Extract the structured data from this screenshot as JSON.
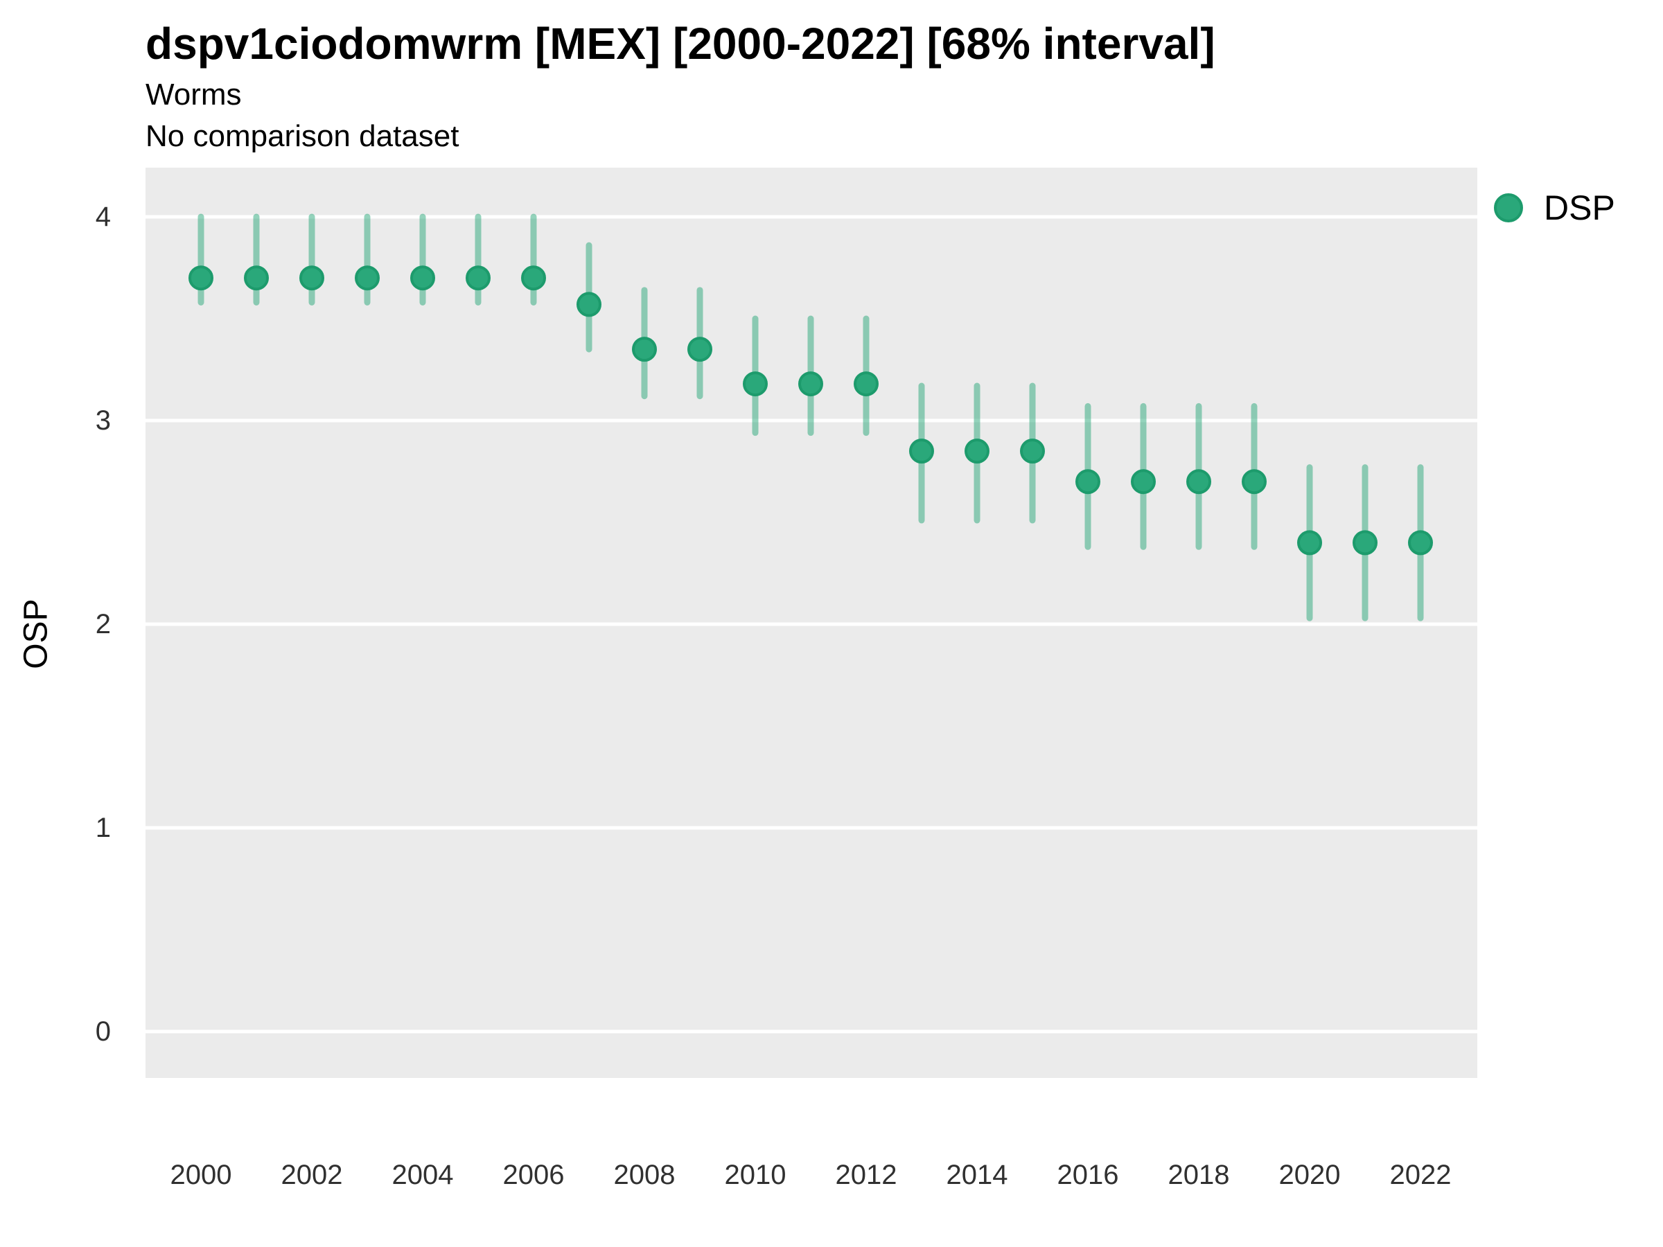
{
  "header": {
    "title": "dspv1ciodomwrm [MEX] [2000-2022] [68% interval]",
    "subtitle": "Worms",
    "note": "No comparison dataset"
  },
  "axes": {
    "ylabel": "OSP"
  },
  "legend": {
    "items": [
      {
        "label": "DSP",
        "marker": "circle"
      }
    ]
  },
  "colors": {
    "point": "#2aa87a",
    "point_border": "#1d9b6c",
    "interval": "rgba(42,168,122,0.5)",
    "panel_bg": "#ebebeb",
    "gridline": "#ffffff",
    "tick_text": "#303030",
    "text": "#000000"
  },
  "chart_data": {
    "type": "scatter",
    "variant": "pointrange",
    "title": "dspv1ciodomwrm [MEX] [2000-2022] [68% interval]",
    "subtitle": "Worms",
    "note": "No comparison dataset",
    "interval_level": "68%",
    "xlabel": "",
    "ylabel": "OSP",
    "legend_position": "right",
    "grid": "major horizontal, white on gray panel",
    "ylim": [
      -0.23,
      4.24
    ],
    "yticks": [
      0,
      1,
      2,
      3,
      4
    ],
    "xticks": [
      2000,
      2002,
      2004,
      2006,
      2008,
      2010,
      2012,
      2014,
      2016,
      2018,
      2020,
      2022
    ],
    "x": [
      2000,
      2001,
      2002,
      2003,
      2004,
      2005,
      2006,
      2007,
      2008,
      2009,
      2010,
      2011,
      2012,
      2013,
      2014,
      2015,
      2016,
      2017,
      2018,
      2019,
      2020,
      2021,
      2022
    ],
    "series": [
      {
        "name": "DSP",
        "values": [
          3.7,
          3.7,
          3.7,
          3.7,
          3.7,
          3.7,
          3.7,
          3.57,
          3.35,
          3.35,
          3.18,
          3.18,
          3.18,
          2.85,
          2.85,
          2.85,
          2.7,
          2.7,
          2.7,
          2.7,
          2.4,
          2.4,
          2.4
        ],
        "lower": [
          3.58,
          3.58,
          3.58,
          3.58,
          3.58,
          3.58,
          3.58,
          3.35,
          3.12,
          3.12,
          2.94,
          2.94,
          2.94,
          2.51,
          2.51,
          2.51,
          2.38,
          2.38,
          2.38,
          2.38,
          2.03,
          2.03,
          2.03
        ],
        "upper": [
          4.0,
          4.0,
          4.0,
          4.0,
          4.0,
          4.0,
          4.0,
          3.86,
          3.64,
          3.64,
          3.5,
          3.5,
          3.5,
          3.17,
          3.17,
          3.17,
          3.07,
          3.07,
          3.07,
          3.07,
          2.77,
          2.77,
          2.77
        ]
      }
    ]
  }
}
